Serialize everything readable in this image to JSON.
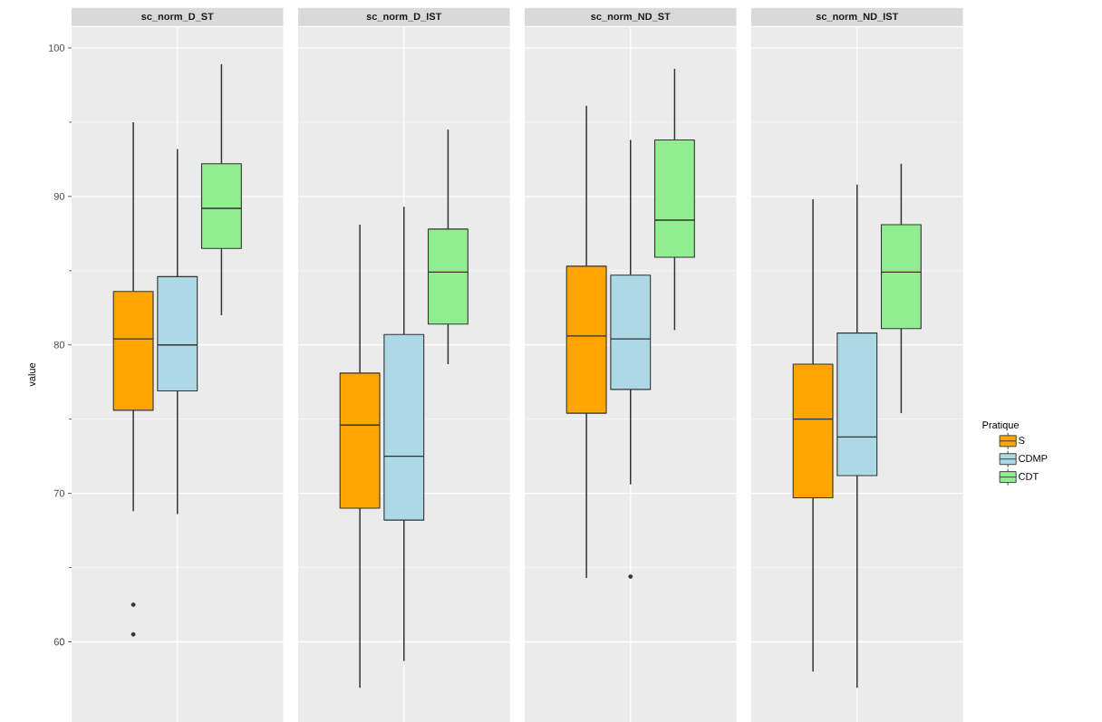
{
  "chart_data": {
    "type": "box",
    "ylabel": "value",
    "categories": [
      "sc_norm_D_ST",
      "sc_norm_D_IST",
      "sc_norm_ND_ST",
      "sc_norm_ND_IST"
    ],
    "ylim": [
      54.6,
      101.4
    ],
    "yticks": [
      60,
      70,
      80,
      90,
      100
    ],
    "grid": true,
    "legend": "right",
    "legend_title": "Pratique",
    "series": [
      {
        "name": "S",
        "color": "#ffa500",
        "boxes": [
          {
            "low": 68.8,
            "q1": 75.6,
            "median": 80.4,
            "q3": 83.6,
            "high": 95.0,
            "outliers": [
              62.5,
              60.5
            ]
          },
          {
            "low": 56.9,
            "q1": 69.0,
            "median": 74.6,
            "q3": 78.1,
            "high": 88.1
          },
          {
            "low": 64.3,
            "q1": 75.4,
            "median": 80.6,
            "q3": 85.3,
            "high": 96.1
          },
          {
            "low": 58.0,
            "q1": 69.7,
            "median": 75.0,
            "q3": 78.7,
            "high": 89.8
          }
        ]
      },
      {
        "name": "CDMP",
        "color": "#add8e6",
        "boxes": [
          {
            "low": 68.6,
            "q1": 76.9,
            "median": 80.0,
            "q3": 84.6,
            "high": 93.2
          },
          {
            "low": 58.7,
            "q1": 68.2,
            "median": 72.5,
            "q3": 80.7,
            "high": 89.3
          },
          {
            "low": 70.6,
            "q1": 77.0,
            "median": 80.4,
            "q3": 84.7,
            "high": 93.8,
            "outliers": [
              64.4
            ]
          },
          {
            "low": 56.9,
            "q1": 71.2,
            "median": 73.8,
            "q3": 80.8,
            "high": 90.8
          }
        ]
      },
      {
        "name": "CDT",
        "color": "#90ee90",
        "boxes": [
          {
            "low": 82.0,
            "q1": 86.5,
            "median": 89.2,
            "q3": 92.2,
            "high": 98.9
          },
          {
            "low": 78.7,
            "q1": 81.4,
            "median": 84.9,
            "q3": 87.8,
            "high": 94.5
          },
          {
            "low": 81.0,
            "q1": 85.9,
            "median": 88.4,
            "q3": 93.8,
            "high": 98.6
          },
          {
            "low": 75.4,
            "q1": 81.1,
            "median": 84.9,
            "q3": 88.1,
            "high": 92.2
          }
        ]
      }
    ]
  }
}
